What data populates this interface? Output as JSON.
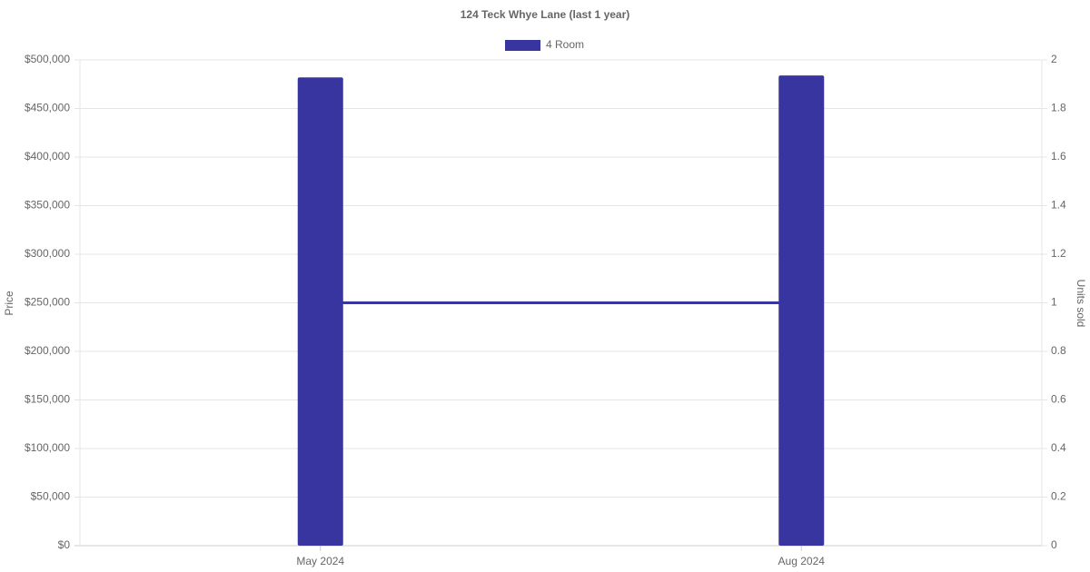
{
  "chart_data": {
    "type": "bar",
    "title": "124 Teck Whye Lane (last 1 year)",
    "categories": [
      "May 2024",
      "Aug 2024"
    ],
    "series": [
      {
        "name": "4 Room",
        "type": "bar",
        "color": "#3835a0",
        "values": [
          482000,
          484000
        ]
      },
      {
        "type": "line",
        "axis": "y2",
        "color": "#3835a0",
        "values": [
          1,
          1
        ]
      }
    ],
    "y_label": "Price",
    "y2_label": "Units sold",
    "ylim": [
      0,
      500000
    ],
    "yticks": [
      {
        "value": 0,
        "label": "$0"
      },
      {
        "value": 50000,
        "label": "$50,000"
      },
      {
        "value": 100000,
        "label": "$100,000"
      },
      {
        "value": 150000,
        "label": "$150,000"
      },
      {
        "value": 200000,
        "label": "$200,000"
      },
      {
        "value": 250000,
        "label": "$250,000"
      },
      {
        "value": 300000,
        "label": "$300,000"
      },
      {
        "value": 350000,
        "label": "$350,000"
      },
      {
        "value": 400000,
        "label": "$400,000"
      },
      {
        "value": 450000,
        "label": "$450,000"
      },
      {
        "value": 500000,
        "label": "$500,000"
      }
    ],
    "y2lim": [
      0,
      2
    ],
    "y2ticks": [
      0,
      0.2,
      0.4,
      0.6,
      0.8,
      1,
      1.2,
      1.4,
      1.6,
      1.8,
      2
    ],
    "grid": true,
    "legend": "top"
  }
}
